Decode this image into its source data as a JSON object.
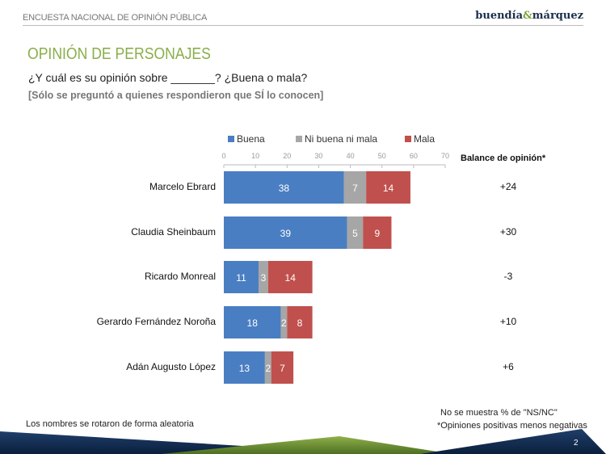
{
  "header": {
    "survey": "ENCUESTA NACIONAL DE OPINIÓN PÚBLICA",
    "logo_left": "buendía",
    "logo_amp": "&",
    "logo_right": "márquez"
  },
  "title": "OPINIÓN DE PERSONAJES",
  "question": "¿Y cuál es su opinión sobre _______? ¿Buena o mala?",
  "note": "[Sólo se preguntó a quienes respondieron que SÍ lo conocen]",
  "chart_data": {
    "type": "bar",
    "orientation": "horizontal",
    "stacked": true,
    "categories": [
      "Marcelo Ebrard",
      "Claudia Sheinbaum",
      "Ricardo Monreal",
      "Gerardo Fernández Noroña",
      "Adán Augusto López"
    ],
    "series": [
      {
        "name": "Buena",
        "color": "#4a7ec2",
        "values": [
          38,
          39,
          11,
          18,
          13
        ]
      },
      {
        "name": "Ni buena ni mala",
        "color": "#a6a6a6",
        "values": [
          7,
          5,
          3,
          2,
          2
        ]
      },
      {
        "name": "Mala",
        "color": "#c0504d",
        "values": [
          14,
          9,
          14,
          8,
          7
        ]
      }
    ],
    "xlim": [
      0,
      70
    ],
    "xticks": [
      0,
      10,
      20,
      30,
      40,
      50,
      60,
      70
    ],
    "legend": "top",
    "grid": false,
    "balance_header": "Balance de opinión*",
    "balance": [
      "+24",
      "+30",
      "-3",
      "+10",
      "+6"
    ]
  },
  "footer": {
    "left": "Los nombres se rotaron de forma aleatoria",
    "right1": "No se muestra % de \"NS/NC\"",
    "right2": "*Opiniones positivas menos negativas",
    "page": "2"
  }
}
